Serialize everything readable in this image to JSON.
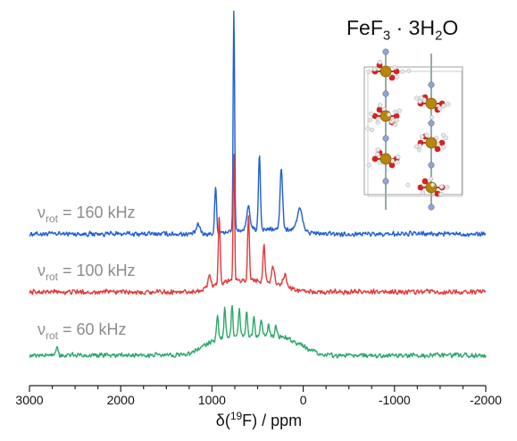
{
  "chart_data": {
    "type": "line",
    "title": "FeF₃ · 3H₂O",
    "title_parts": {
      "base": "FeF",
      "sub1": "3",
      "mid": " · 3H",
      "sub2": "2",
      "end": "O"
    },
    "xlabel": {
      "prefix": "δ(",
      "sup": "19",
      "suffix": "F) / ppm"
    },
    "ylabel": "",
    "x_reversed": true,
    "xlim": [
      3000,
      -2000
    ],
    "x_ticks": [
      3000,
      2000,
      1000,
      0,
      -1000,
      -2000
    ],
    "x_tick_labels": [
      "3000",
      "2000",
      "1000",
      "0",
      "-1000",
      "-2000"
    ],
    "grid": false,
    "legend": "none",
    "series": [
      {
        "name": "νrot = 160 kHz",
        "label_parts": {
          "greek": "ν",
          "sub": "rot",
          "text": " = 160 kHz"
        },
        "color": "#1f5fd6",
        "baseline_rel": 0,
        "noise": 0.013,
        "broad": {
          "center": 400,
          "width": 900,
          "height": 0.02
        },
        "peaks": [
          {
            "x": 960,
            "h": 0.22,
            "w": 14
          },
          {
            "x": 760,
            "h": 1.0,
            "w": 11
          },
          {
            "x": 480,
            "h": 0.34,
            "w": 15
          },
          {
            "x": 240,
            "h": 0.27,
            "w": 20
          },
          {
            "x": 600,
            "h": 0.1,
            "w": 25
          },
          {
            "x": 40,
            "h": 0.1,
            "w": 40
          },
          {
            "x": 1150,
            "h": 0.04,
            "w": 30
          }
        ]
      },
      {
        "name": "νrot = 100 kHz",
        "label_parts": {
          "greek": "ν",
          "sub": "rot",
          "text": " = 100 kHz"
        },
        "color": "#e03a3a",
        "baseline_rel": 0,
        "noise": 0.013,
        "broad": {
          "center": 600,
          "width": 900,
          "height": 0.05
        },
        "peaks": [
          {
            "x": 920,
            "h": 0.3,
            "w": 14
          },
          {
            "x": 760,
            "h": 0.58,
            "w": 11
          },
          {
            "x": 600,
            "h": 0.3,
            "w": 14
          },
          {
            "x": 430,
            "h": 0.16,
            "w": 16
          },
          {
            "x": 1030,
            "h": 0.06,
            "w": 20
          },
          {
            "x": 330,
            "h": 0.07,
            "w": 20
          },
          {
            "x": 200,
            "h": 0.05,
            "w": 25
          }
        ]
      },
      {
        "name": "νrot = 60 kHz",
        "label_parts": {
          "greek": "ν",
          "sub": "rot",
          "text": " = 60 kHz"
        },
        "color": "#2ea86a",
        "baseline_rel": 0,
        "noise": 0.013,
        "broad": {
          "center": 550,
          "width": 1150,
          "height": 0.09
        },
        "peaks": [
          {
            "x": 940,
            "h": 0.1,
            "w": 14
          },
          {
            "x": 860,
            "h": 0.13,
            "w": 13
          },
          {
            "x": 780,
            "h": 0.14,
            "w": 13
          },
          {
            "x": 700,
            "h": 0.12,
            "w": 13
          },
          {
            "x": 620,
            "h": 0.1,
            "w": 13
          },
          {
            "x": 540,
            "h": 0.08,
            "w": 13
          },
          {
            "x": 460,
            "h": 0.06,
            "w": 14
          },
          {
            "x": 380,
            "h": 0.05,
            "w": 14
          },
          {
            "x": 300,
            "h": 0.04,
            "w": 15
          },
          {
            "x": 2700,
            "h": 0.04,
            "w": 20
          }
        ]
      }
    ]
  },
  "inset": {
    "type": "crystal-structure",
    "atom_colors": {
      "iron": "#b8860b",
      "oxygen": "#d62222",
      "fluorine": "#8fa4d8",
      "hydrogen": "#e8e8e8"
    }
  }
}
